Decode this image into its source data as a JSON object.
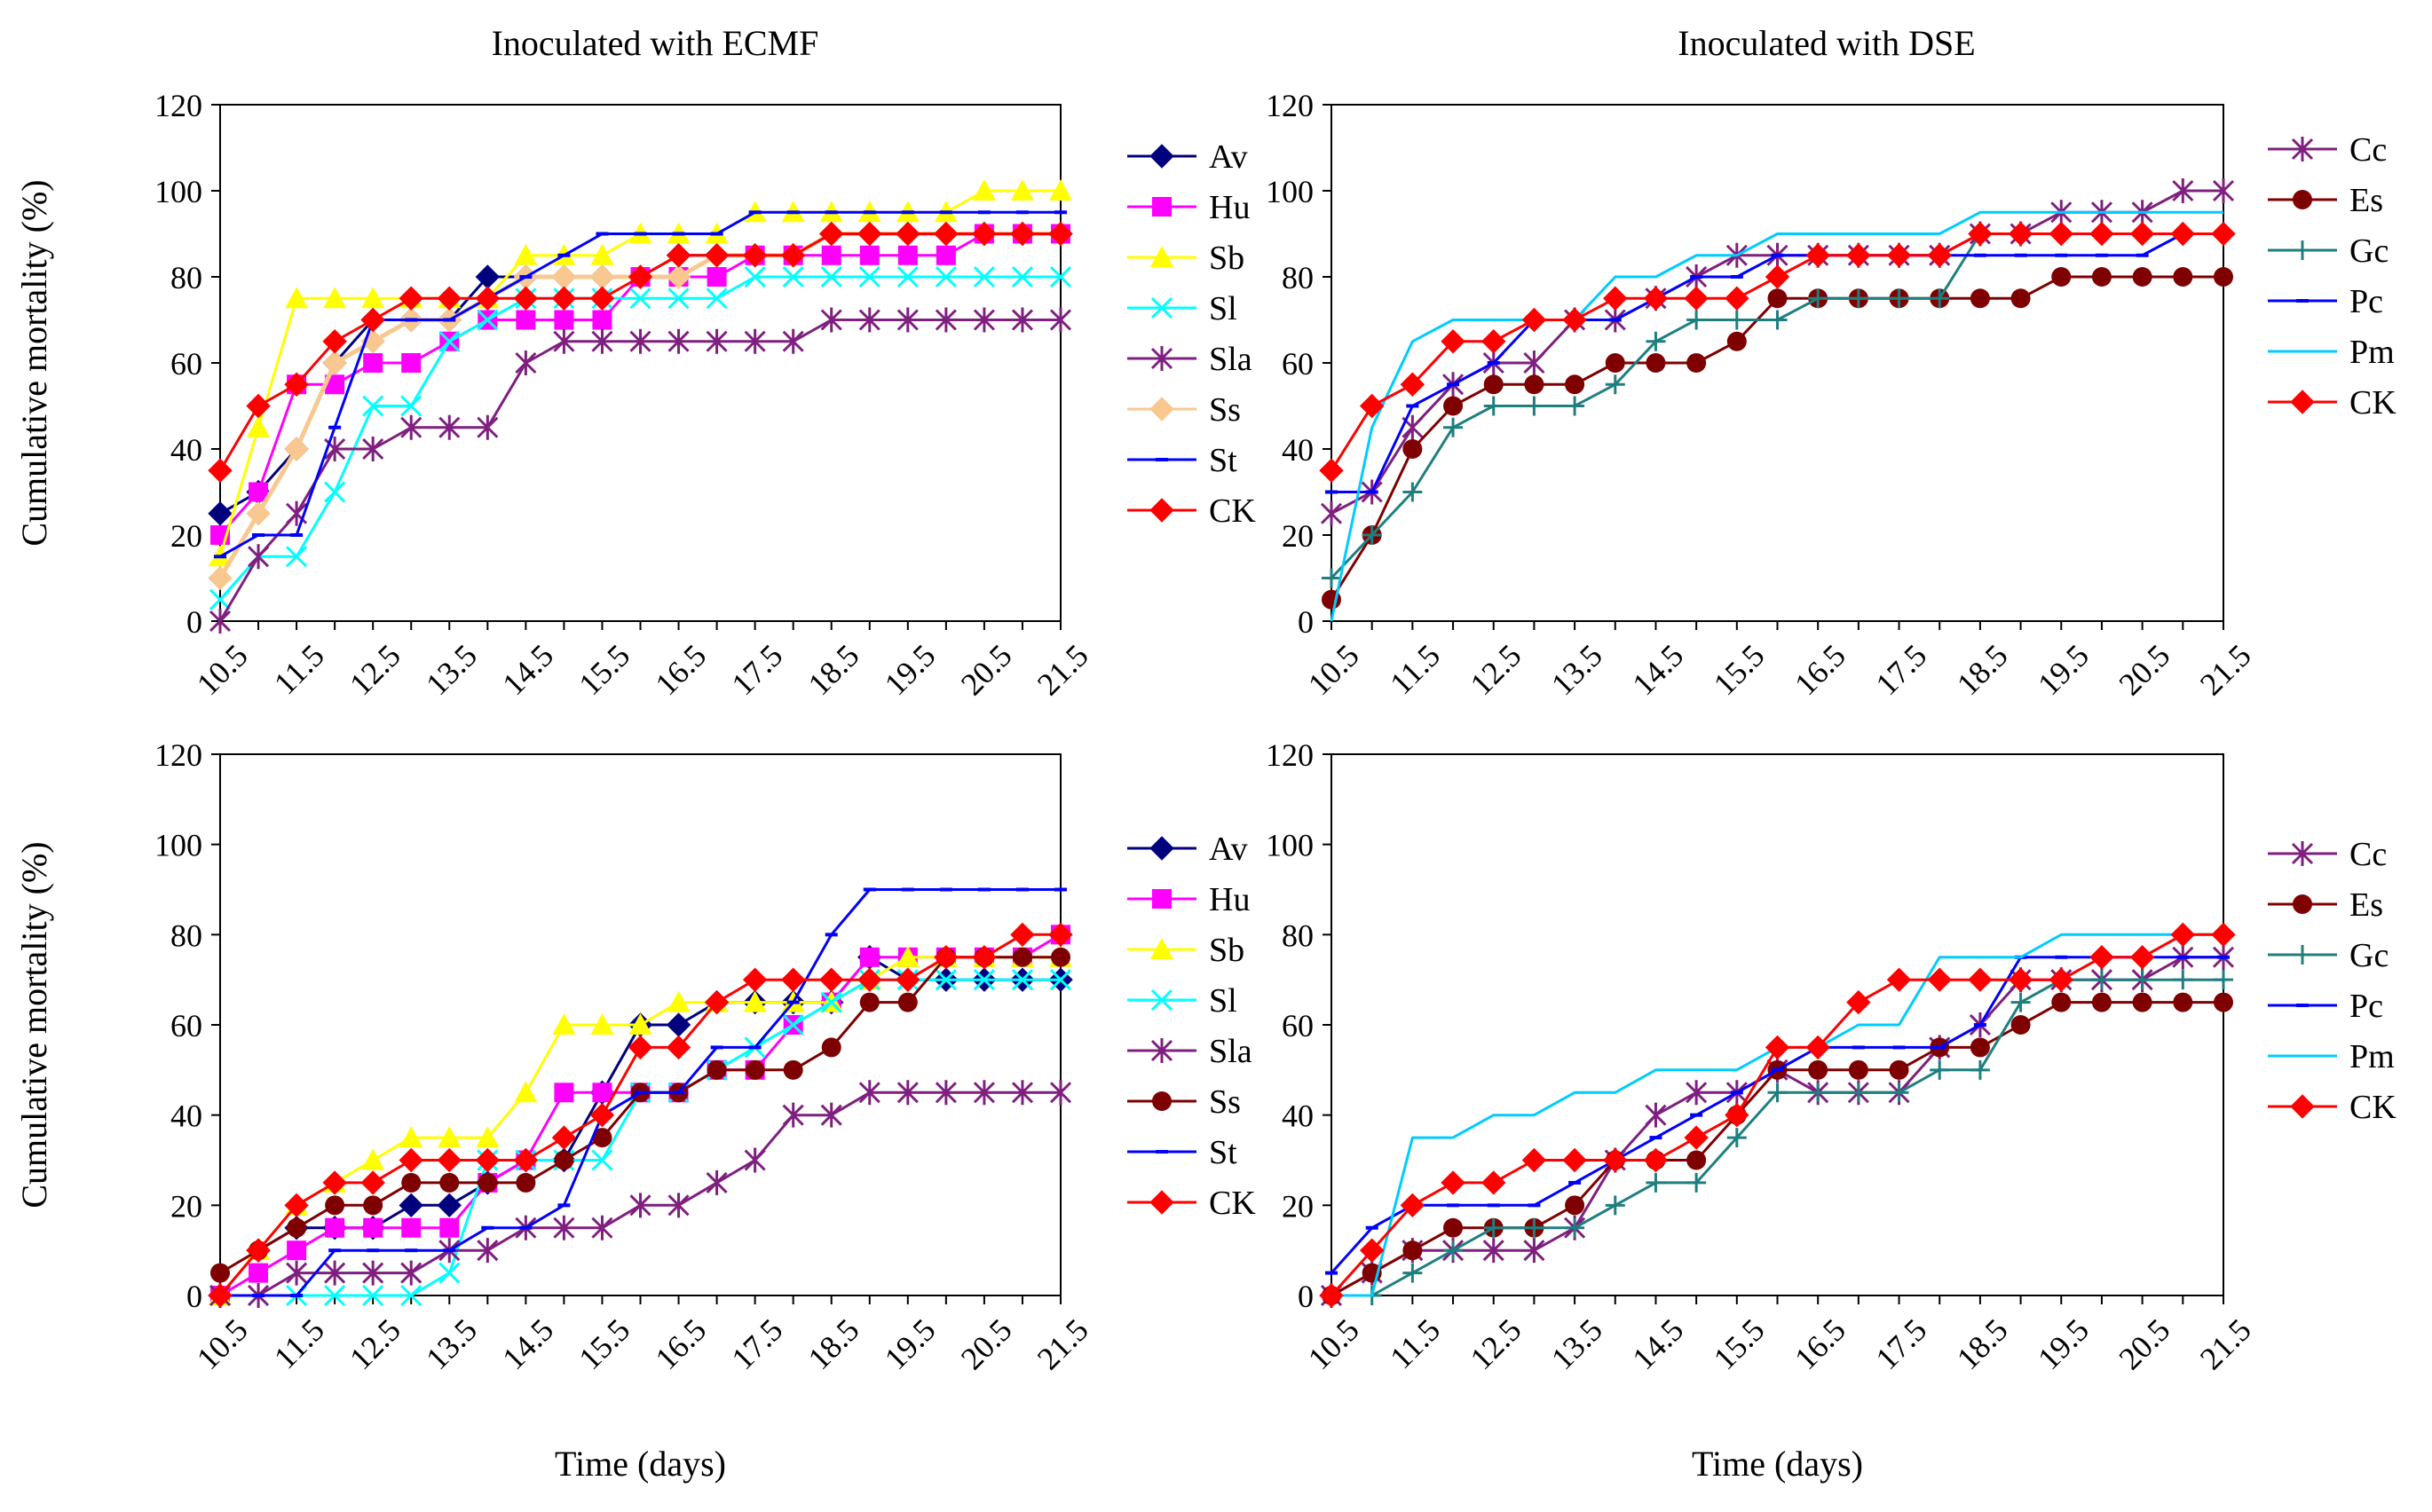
{
  "figure": {
    "col_titles": [
      "Inoculated with ECMF",
      "Inoculated with DSE"
    ]
  },
  "chart_data": [
    {
      "type": "line",
      "title": "Inoculated with ECMF",
      "xlabel": "",
      "ylabel": "Cumulative mortality (%)",
      "ylim": [
        0,
        120
      ],
      "yticks": [
        "0",
        "20",
        "40",
        "60",
        "80",
        "100",
        "120"
      ],
      "xlim": [
        10.5,
        21.5
      ],
      "xticks": [
        "10.5",
        "11.5",
        "12.5",
        "13.5",
        "14.5",
        "15.5",
        "16.5",
        "17.5",
        "18.5",
        "19.5",
        "20.5",
        "21.5"
      ],
      "x": [
        10.5,
        11,
        11.5,
        12,
        12.5,
        13,
        13.5,
        14,
        14.5,
        15,
        15.5,
        16,
        16.5,
        17,
        17.5,
        18,
        18.5,
        19,
        19.5,
        20,
        20.5,
        21,
        21.5
      ],
      "legend_position": "right",
      "series": [
        {
          "name": "Av",
          "color": "#00007f",
          "marker": "diamond",
          "values": [
            25,
            30,
            40,
            60,
            70,
            70,
            70,
            80,
            80,
            80,
            80,
            80,
            85,
            85,
            85,
            85,
            90,
            90,
            90,
            90,
            90,
            90,
            90
          ]
        },
        {
          "name": "Hu",
          "color": "#ff00ff",
          "marker": "square",
          "values": [
            20,
            30,
            55,
            55,
            60,
            60,
            65,
            70,
            70,
            70,
            70,
            80,
            80,
            80,
            85,
            85,
            85,
            85,
            85,
            85,
            90,
            90,
            90
          ]
        },
        {
          "name": "Sb",
          "color": "#ffff00",
          "marker": "triangle",
          "values": [
            15,
            45,
            75,
            75,
            75,
            75,
            75,
            75,
            85,
            85,
            85,
            90,
            90,
            90,
            95,
            95,
            95,
            95,
            95,
            95,
            100,
            100,
            100
          ]
        },
        {
          "name": "Sl",
          "color": "#00ffff",
          "marker": "x",
          "values": [
            5,
            15,
            15,
            30,
            50,
            50,
            65,
            70,
            75,
            75,
            75,
            75,
            75,
            75,
            80,
            80,
            80,
            80,
            80,
            80,
            80,
            80,
            80
          ]
        },
        {
          "name": "Sla",
          "color": "#7f1f7f",
          "marker": "star",
          "values": [
            0,
            15,
            25,
            40,
            40,
            45,
            45,
            45,
            60,
            65,
            65,
            65,
            65,
            65,
            65,
            65,
            70,
            70,
            70,
            70,
            70,
            70,
            70
          ]
        },
        {
          "name": "Ss",
          "color": "#f9c890",
          "marker": "diamond",
          "values": [
            10,
            25,
            40,
            60,
            65,
            70,
            70,
            75,
            80,
            80,
            80,
            80,
            80,
            85,
            85,
            85,
            90,
            90,
            90,
            90,
            90,
            90,
            90
          ]
        },
        {
          "name": "St",
          "color": "#0000ff",
          "marker": "dash",
          "values": [
            15,
            20,
            20,
            45,
            70,
            70,
            70,
            75,
            80,
            85,
            90,
            90,
            90,
            90,
            95,
            95,
            95,
            95,
            95,
            95,
            95,
            95,
            95
          ]
        },
        {
          "name": "CK",
          "color": "#ff0000",
          "marker": "diamond",
          "values": [
            35,
            50,
            55,
            65,
            70,
            75,
            75,
            75,
            75,
            75,
            75,
            80,
            85,
            85,
            85,
            85,
            90,
            90,
            90,
            90,
            90,
            90,
            90
          ]
        }
      ]
    },
    {
      "type": "line",
      "title": "Inoculated with DSE",
      "xlabel": "",
      "ylabel": "",
      "ylim": [
        0,
        120
      ],
      "yticks": [
        "0",
        "20",
        "40",
        "60",
        "80",
        "100",
        "120"
      ],
      "xlim": [
        10.5,
        21.5
      ],
      "xticks": [
        "10.5",
        "11.5",
        "12.5",
        "13.5",
        "14.5",
        "15.5",
        "16.5",
        "17.5",
        "18.5",
        "19.5",
        "20.5",
        "21.5"
      ],
      "x": [
        10.5,
        11,
        11.5,
        12,
        12.5,
        13,
        13.5,
        14,
        14.5,
        15,
        15.5,
        16,
        16.5,
        17,
        17.5,
        18,
        18.5,
        19,
        19.5,
        20,
        20.5,
        21,
        21.5
      ],
      "legend_position": "right",
      "series": [
        {
          "name": "Cc",
          "color": "#7f1f7f",
          "marker": "star",
          "values": [
            25,
            30,
            45,
            55,
            60,
            60,
            70,
            70,
            75,
            80,
            85,
            85,
            85,
            85,
            85,
            85,
            90,
            90,
            95,
            95,
            95,
            100,
            100
          ]
        },
        {
          "name": "Es",
          "color": "#7f0000",
          "marker": "circle",
          "values": [
            5,
            20,
            40,
            50,
            55,
            55,
            55,
            60,
            60,
            60,
            65,
            75,
            75,
            75,
            75,
            75,
            75,
            75,
            80,
            80,
            80,
            80,
            80
          ]
        },
        {
          "name": "Gc",
          "color": "#1f7f7f",
          "marker": "plus",
          "values": [
            10,
            20,
            30,
            45,
            50,
            50,
            50,
            55,
            65,
            70,
            70,
            70,
            75,
            75,
            75,
            75,
            90,
            90,
            90,
            90,
            90,
            90,
            90
          ]
        },
        {
          "name": "Pc",
          "color": "#0000ff",
          "marker": "dash",
          "values": [
            30,
            30,
            50,
            55,
            60,
            70,
            70,
            70,
            75,
            80,
            80,
            85,
            85,
            85,
            85,
            85,
            85,
            85,
            85,
            85,
            85,
            90,
            90
          ]
        },
        {
          "name": "Pm",
          "color": "#00ccff",
          "marker": "none",
          "values": [
            0,
            45,
            65,
            70,
            70,
            70,
            70,
            80,
            80,
            85,
            85,
            90,
            90,
            90,
            90,
            90,
            95,
            95,
            95,
            95,
            95,
            95,
            95
          ]
        },
        {
          "name": "CK",
          "color": "#ff0000",
          "marker": "diamond",
          "values": [
            35,
            50,
            55,
            65,
            65,
            70,
            70,
            75,
            75,
            75,
            75,
            80,
            85,
            85,
            85,
            85,
            90,
            90,
            90,
            90,
            90,
            90,
            90
          ]
        }
      ]
    },
    {
      "type": "line",
      "title": "",
      "xlabel": "Time (days)",
      "ylabel": "Cumulative mortality (%)",
      "ylim": [
        0,
        120
      ],
      "yticks": [
        "0",
        "20",
        "40",
        "60",
        "80",
        "100",
        "120"
      ],
      "xlim": [
        10.5,
        21.5
      ],
      "xticks": [
        "10.5",
        "11.5",
        "12.5",
        "13.5",
        "14.5",
        "15.5",
        "16.5",
        "17.5",
        "18.5",
        "19.5",
        "20.5",
        "21.5"
      ],
      "x": [
        10.5,
        11,
        11.5,
        12,
        12.5,
        13,
        13.5,
        14,
        14.5,
        15,
        15.5,
        16,
        16.5,
        17,
        17.5,
        18,
        18.5,
        19,
        19.5,
        20,
        20.5,
        21,
        21.5
      ],
      "legend_position": "right",
      "series": [
        {
          "name": "Av",
          "color": "#00007f",
          "marker": "diamond",
          "values": [
            0,
            10,
            15,
            15,
            15,
            20,
            20,
            25,
            30,
            30,
            45,
            60,
            60,
            65,
            65,
            65,
            65,
            75,
            70,
            70,
            70,
            70,
            70
          ]
        },
        {
          "name": "Hu",
          "color": "#ff00ff",
          "marker": "square",
          "values": [
            0,
            5,
            10,
            15,
            15,
            15,
            15,
            25,
            30,
            45,
            45,
            45,
            45,
            50,
            50,
            60,
            65,
            75,
            75,
            75,
            75,
            75,
            80
          ]
        },
        {
          "name": "Sb",
          "color": "#ffff00",
          "marker": "triangle",
          "values": [
            0,
            10,
            20,
            25,
            30,
            35,
            35,
            35,
            45,
            60,
            60,
            60,
            65,
            65,
            65,
            65,
            65,
            70,
            75,
            75,
            75,
            75,
            75
          ]
        },
        {
          "name": "Sl",
          "color": "#00ffff",
          "marker": "x",
          "values": [
            0,
            0,
            0,
            0,
            0,
            0,
            5,
            30,
            30,
            30,
            30,
            45,
            45,
            50,
            55,
            60,
            65,
            70,
            70,
            70,
            70,
            70,
            70
          ]
        },
        {
          "name": "Sla",
          "color": "#7f1f7f",
          "marker": "star",
          "values": [
            0,
            0,
            5,
            5,
            5,
            5,
            10,
            10,
            15,
            15,
            15,
            20,
            20,
            25,
            30,
            40,
            40,
            45,
            45,
            45,
            45,
            45,
            45
          ]
        },
        {
          "name": "Ss",
          "color": "#7f0000",
          "marker": "circle",
          "values": [
            5,
            10,
            15,
            20,
            20,
            25,
            25,
            25,
            25,
            30,
            35,
            45,
            45,
            50,
            50,
            50,
            55,
            65,
            65,
            75,
            75,
            75,
            75
          ]
        },
        {
          "name": "St",
          "color": "#0000ff",
          "marker": "dash",
          "values": [
            0,
            0,
            0,
            10,
            10,
            10,
            10,
            15,
            15,
            20,
            40,
            45,
            45,
            55,
            55,
            65,
            80,
            90,
            90,
            90,
            90,
            90,
            90
          ]
        },
        {
          "name": "CK",
          "color": "#ff0000",
          "marker": "diamond",
          "values": [
            0,
            10,
            20,
            25,
            25,
            30,
            30,
            30,
            30,
            35,
            40,
            55,
            55,
            65,
            70,
            70,
            70,
            70,
            70,
            75,
            75,
            80,
            80
          ]
        }
      ]
    },
    {
      "type": "line",
      "title": "",
      "xlabel": "Time (days)",
      "ylabel": "",
      "ylim": [
        0,
        120
      ],
      "yticks": [
        "0",
        "20",
        "40",
        "60",
        "80",
        "100",
        "120"
      ],
      "xlim": [
        10.5,
        21.5
      ],
      "xticks": [
        "10.5",
        "11.5",
        "12.5",
        "13.5",
        "14.5",
        "15.5",
        "16.5",
        "17.5",
        "18.5",
        "19.5",
        "20.5",
        "21.5"
      ],
      "x": [
        10.5,
        11,
        11.5,
        12,
        12.5,
        13,
        13.5,
        14,
        14.5,
        15,
        15.5,
        16,
        16.5,
        17,
        17.5,
        18,
        18.5,
        19,
        19.5,
        20,
        20.5,
        21,
        21.5
      ],
      "legend_position": "right",
      "series": [
        {
          "name": "Cc",
          "color": "#7f1f7f",
          "marker": "star",
          "values": [
            0,
            5,
            10,
            10,
            10,
            10,
            15,
            30,
            40,
            45,
            45,
            50,
            45,
            45,
            45,
            55,
            60,
            70,
            70,
            70,
            70,
            75,
            75
          ]
        },
        {
          "name": "Es",
          "color": "#7f0000",
          "marker": "circle",
          "values": [
            0,
            5,
            10,
            15,
            15,
            15,
            20,
            30,
            30,
            30,
            40,
            50,
            50,
            50,
            50,
            55,
            55,
            60,
            65,
            65,
            65,
            65,
            65
          ]
        },
        {
          "name": "Gc",
          "color": "#1f7f7f",
          "marker": "plus",
          "values": [
            0,
            0,
            5,
            10,
            15,
            15,
            15,
            20,
            25,
            25,
            35,
            45,
            45,
            45,
            45,
            50,
            50,
            65,
            70,
            70,
            70,
            70,
            70
          ]
        },
        {
          "name": "Pc",
          "color": "#0000ff",
          "marker": "dash",
          "values": [
            5,
            15,
            20,
            20,
            20,
            20,
            25,
            30,
            35,
            40,
            45,
            50,
            55,
            55,
            55,
            55,
            60,
            75,
            75,
            75,
            75,
            75,
            75
          ]
        },
        {
          "name": "Pm",
          "color": "#00ccff",
          "marker": "none",
          "values": [
            0,
            0,
            35,
            35,
            40,
            40,
            45,
            45,
            50,
            50,
            50,
            55,
            55,
            60,
            60,
            75,
            75,
            75,
            80,
            80,
            80,
            80,
            80
          ]
        },
        {
          "name": "CK",
          "color": "#ff0000",
          "marker": "diamond",
          "values": [
            0,
            10,
            20,
            25,
            25,
            30,
            30,
            30,
            30,
            35,
            40,
            55,
            55,
            65,
            70,
            70,
            70,
            70,
            70,
            75,
            75,
            80,
            80
          ]
        }
      ]
    }
  ]
}
